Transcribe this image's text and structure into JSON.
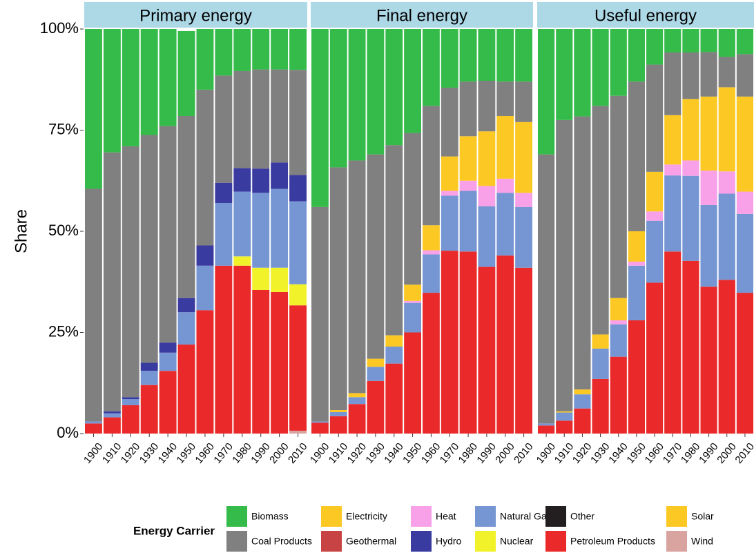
{
  "ylabel": "Share",
  "ylim": [
    0,
    100
  ],
  "yticks": [
    {
      "value": 0,
      "label": "0%"
    },
    {
      "value": 25,
      "label": "25%"
    },
    {
      "value": 50,
      "label": "50%"
    },
    {
      "value": 75,
      "label": "75%"
    },
    {
      "value": 100,
      "label": "100%"
    }
  ],
  "legend_title": "Energy Carrier",
  "chart_data": [
    {
      "type": "stacked_bar",
      "title": "Primary energy",
      "categories": [
        "1900",
        "1910",
        "1920",
        "1930",
        "1940",
        "1950",
        "1960",
        "1970",
        "1980",
        "1990",
        "2000",
        "2010"
      ],
      "series": [
        {
          "name": "Biomass",
          "color": "#35bb4a",
          "values": [
            39.5,
            30.5,
            29,
            26.2,
            24,
            21,
            15,
            11.5,
            10.4,
            10,
            10,
            10.1
          ]
        },
        {
          "name": "Coal Products",
          "color": "#808080",
          "values": [
            57.5,
            64,
            62,
            56.3,
            53.5,
            45,
            38.5,
            26.5,
            24,
            24.5,
            23,
            26
          ]
        },
        {
          "name": "Electricity",
          "color": "#fcc824",
          "values": [
            0,
            0,
            0,
            0,
            0,
            0,
            0,
            0,
            0,
            0,
            0,
            0
          ]
        },
        {
          "name": "Geothermal",
          "color": "#c84444",
          "values": [
            0,
            0,
            0,
            0,
            0,
            0,
            0,
            0,
            0,
            0,
            0,
            0
          ]
        },
        {
          "name": "Heat",
          "color": "#f8a0e8",
          "values": [
            0,
            0,
            0,
            0,
            0,
            0,
            0,
            0,
            0,
            0,
            0,
            0
          ]
        },
        {
          "name": "Hydro",
          "color": "#3a3ba0",
          "values": [
            0,
            0.5,
            0.5,
            2,
            2.5,
            3.5,
            5,
            5,
            5.8,
            6,
            6.5,
            6.5
          ]
        },
        {
          "name": "Natural Gas",
          "color": "#7696d3",
          "values": [
            0.5,
            1,
            1.5,
            3.5,
            4.5,
            8,
            11,
            15.5,
            16,
            18.5,
            19.5,
            20.5
          ]
        },
        {
          "name": "Nuclear",
          "color": "#f2f22a",
          "values": [
            0,
            0,
            0,
            0,
            0,
            0,
            0,
            0,
            2.3,
            5.5,
            6,
            5.2
          ]
        },
        {
          "name": "Other",
          "color": "#231f20",
          "values": [
            0,
            0,
            0,
            0,
            0,
            0,
            0,
            0,
            0,
            0,
            0,
            0
          ]
        },
        {
          "name": "Petroleum Products",
          "color": "#ea2a2a",
          "values": [
            2.5,
            4,
            7,
            12,
            15.5,
            22,
            30.5,
            41.5,
            41.5,
            35.5,
            35,
            31
          ]
        },
        {
          "name": "Solar",
          "color": "#fcc824",
          "values": [
            0,
            0,
            0,
            0,
            0,
            0,
            0,
            0,
            0,
            0,
            0,
            0
          ]
        },
        {
          "name": "Wind",
          "color": "#d9a3a0",
          "values": [
            0,
            0,
            0,
            0,
            0,
            0,
            0,
            0,
            0,
            0,
            0,
            0.7
          ]
        }
      ]
    },
    {
      "type": "stacked_bar",
      "title": "Final energy",
      "categories": [
        "1900",
        "1910",
        "1920",
        "1930",
        "1940",
        "1950",
        "1960",
        "1970",
        "1980",
        "1990",
        "2000",
        "2010"
      ],
      "series": [
        {
          "name": "Biomass",
          "color": "#35bb4a",
          "values": [
            44,
            34.2,
            32.5,
            31,
            28.7,
            25.7,
            19,
            14.5,
            13,
            12.8,
            13,
            13
          ]
        },
        {
          "name": "Coal Products",
          "color": "#808080",
          "values": [
            53,
            60,
            57.5,
            50.5,
            47,
            37.5,
            29.5,
            17,
            13.5,
            12.5,
            8.5,
            10
          ]
        },
        {
          "name": "Electricity",
          "color": "#fcc824",
          "values": [
            0,
            0.5,
            1,
            2,
            2.8,
            4,
            6.2,
            8.5,
            11,
            13.5,
            15.5,
            17.5
          ]
        },
        {
          "name": "Geothermal",
          "color": "#c84444",
          "values": [
            0,
            0,
            0,
            0,
            0,
            0,
            0,
            0,
            0,
            0,
            0,
            0
          ]
        },
        {
          "name": "Heat",
          "color": "#f8a0e8",
          "values": [
            0,
            0,
            0,
            0,
            0,
            0.5,
            1,
            1.2,
            2.5,
            5,
            3.5,
            3.5
          ]
        },
        {
          "name": "Hydro",
          "color": "#3a3ba0",
          "values": [
            0,
            0,
            0,
            0,
            0,
            0,
            0,
            0,
            0,
            0,
            0,
            0
          ]
        },
        {
          "name": "Natural Gas",
          "color": "#7696d3",
          "values": [
            0.3,
            1,
            1.7,
            3.5,
            4.2,
            7.3,
            9.5,
            13.6,
            15,
            15,
            15.5,
            15
          ]
        },
        {
          "name": "Nuclear",
          "color": "#f2f22a",
          "values": [
            0,
            0,
            0,
            0,
            0,
            0,
            0,
            0,
            0,
            0,
            0,
            0
          ]
        },
        {
          "name": "Other",
          "color": "#231f20",
          "values": [
            0,
            0,
            0,
            0,
            0,
            0,
            0,
            0,
            0,
            0,
            0,
            0
          ]
        },
        {
          "name": "Petroleum Products",
          "color": "#ea2a2a",
          "values": [
            2.7,
            4.3,
            7.3,
            13,
            17.3,
            25,
            34.8,
            45.2,
            45,
            41.2,
            44,
            41
          ]
        },
        {
          "name": "Solar",
          "color": "#fcc824",
          "values": [
            0,
            0,
            0,
            0,
            0,
            0,
            0,
            0,
            0,
            0,
            0,
            0
          ]
        },
        {
          "name": "Wind",
          "color": "#d9a3a0",
          "values": [
            0,
            0,
            0,
            0,
            0,
            0,
            0,
            0,
            0,
            0,
            0,
            0
          ]
        }
      ]
    },
    {
      "type": "stacked_bar",
      "title": "Useful energy",
      "categories": [
        "1900",
        "1910",
        "1920",
        "1930",
        "1940",
        "1950",
        "1960",
        "1970",
        "1980",
        "1990",
        "2000",
        "2010"
      ],
      "series": [
        {
          "name": "Biomass",
          "color": "#35bb4a",
          "values": [
            31,
            22.5,
            21.6,
            19,
            16.5,
            13,
            8.8,
            5.8,
            5.8,
            5.7,
            6.9,
            6.2
          ]
        },
        {
          "name": "Coal Products",
          "color": "#808080",
          "values": [
            66.5,
            72,
            67.5,
            56.5,
            50,
            37,
            26.5,
            15.5,
            11.5,
            11,
            7.5,
            10.5
          ]
        },
        {
          "name": "Electricity",
          "color": "#fcc824",
          "values": [
            0,
            0.3,
            1.2,
            3.5,
            5.5,
            7.5,
            9.8,
            12.2,
            15.2,
            18.3,
            20.8,
            23.5
          ]
        },
        {
          "name": "Geothermal",
          "color": "#c84444",
          "values": [
            0,
            0,
            0,
            0,
            0,
            0,
            0,
            0,
            0,
            0,
            0,
            0
          ]
        },
        {
          "name": "Heat",
          "color": "#f8a0e8",
          "values": [
            0,
            0,
            0,
            0,
            1,
            1,
            2.3,
            2.7,
            3.8,
            8.5,
            5.5,
            5.5
          ]
        },
        {
          "name": "Hydro",
          "color": "#3a3ba0",
          "values": [
            0,
            0,
            0,
            0,
            0,
            0,
            0,
            0,
            0,
            0,
            0,
            0
          ]
        },
        {
          "name": "Natural Gas",
          "color": "#7696d3",
          "values": [
            0.5,
            2,
            3.5,
            7.5,
            8,
            13.5,
            15.3,
            18.8,
            21,
            20.2,
            21.3,
            19.5
          ]
        },
        {
          "name": "Nuclear",
          "color": "#f2f22a",
          "values": [
            0,
            0,
            0,
            0,
            0,
            0,
            0,
            0,
            0,
            0,
            0,
            0
          ]
        },
        {
          "name": "Other",
          "color": "#231f20",
          "values": [
            0,
            0,
            0,
            0,
            0,
            0,
            0,
            0,
            0,
            0,
            0,
            0
          ]
        },
        {
          "name": "Petroleum Products",
          "color": "#ea2a2a",
          "values": [
            2,
            3.2,
            6.2,
            13.5,
            19,
            28,
            37.3,
            45,
            42.7,
            36.3,
            38,
            34.8
          ]
        },
        {
          "name": "Solar",
          "color": "#fcc824",
          "values": [
            0,
            0,
            0,
            0,
            0,
            0,
            0,
            0,
            0,
            0,
            0,
            0
          ]
        },
        {
          "name": "Wind",
          "color": "#d9a3a0",
          "values": [
            0,
            0,
            0,
            0,
            0,
            0,
            0,
            0,
            0,
            0,
            0,
            0
          ]
        }
      ]
    }
  ]
}
